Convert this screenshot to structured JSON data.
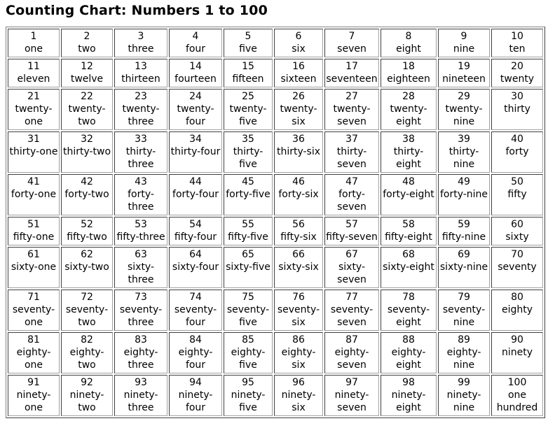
{
  "title": "Counting Chart: Numbers 1 to 100",
  "cells": [
    [
      "1",
      "one"
    ],
    [
      "2",
      "two"
    ],
    [
      "3",
      "three"
    ],
    [
      "4",
      "four"
    ],
    [
      "5",
      "five"
    ],
    [
      "6",
      "six"
    ],
    [
      "7",
      "seven"
    ],
    [
      "8",
      "eight"
    ],
    [
      "9",
      "nine"
    ],
    [
      "10",
      "ten"
    ],
    [
      "11",
      "eleven"
    ],
    [
      "12",
      "twelve"
    ],
    [
      "13",
      "thirteen"
    ],
    [
      "14",
      "fourteen"
    ],
    [
      "15",
      "fifteen"
    ],
    [
      "16",
      "sixteen"
    ],
    [
      "17",
      "seventeen"
    ],
    [
      "18",
      "eighteen"
    ],
    [
      "19",
      "nineteen"
    ],
    [
      "20",
      "twenty"
    ],
    [
      "21",
      "twenty-one"
    ],
    [
      "22",
      "twenty-two"
    ],
    [
      "23",
      "twenty-three"
    ],
    [
      "24",
      "twenty-four"
    ],
    [
      "25",
      "twenty-five"
    ],
    [
      "26",
      "twenty-six"
    ],
    [
      "27",
      "twenty-seven"
    ],
    [
      "28",
      "twenty-eight"
    ],
    [
      "29",
      "twenty-nine"
    ],
    [
      "30",
      "thirty"
    ],
    [
      "31",
      "thirty-one"
    ],
    [
      "32",
      "thirty-two"
    ],
    [
      "33",
      "thirty-three"
    ],
    [
      "34",
      "thirty-four"
    ],
    [
      "35",
      "thirty-five"
    ],
    [
      "36",
      "thirty-six"
    ],
    [
      "37",
      "thirty-seven"
    ],
    [
      "38",
      "thirty-eight"
    ],
    [
      "39",
      "thirty-nine"
    ],
    [
      "40",
      "forty"
    ],
    [
      "41",
      "forty-one"
    ],
    [
      "42",
      "forty-two"
    ],
    [
      "43",
      "forty-three"
    ],
    [
      "44",
      "forty-four"
    ],
    [
      "45",
      "forty-five"
    ],
    [
      "46",
      "forty-six"
    ],
    [
      "47",
      "forty-seven"
    ],
    [
      "48",
      "forty-eight"
    ],
    [
      "49",
      "forty-nine"
    ],
    [
      "50",
      "fifty"
    ],
    [
      "51",
      "fifty-one"
    ],
    [
      "52",
      "fifty-two"
    ],
    [
      "53",
      "fifty-three"
    ],
    [
      "54",
      "fifty-four"
    ],
    [
      "55",
      "fifty-five"
    ],
    [
      "56",
      "fifty-six"
    ],
    [
      "57",
      "fifty-seven"
    ],
    [
      "58",
      "fifty-eight"
    ],
    [
      "59",
      "fifty-nine"
    ],
    [
      "60",
      "sixty"
    ],
    [
      "61",
      "sixty-one"
    ],
    [
      "62",
      "sixty-two"
    ],
    [
      "63",
      "sixty-three"
    ],
    [
      "64",
      "sixty-four"
    ],
    [
      "65",
      "sixty-five"
    ],
    [
      "66",
      "sixty-six"
    ],
    [
      "67",
      "sixty-seven"
    ],
    [
      "68",
      "sixty-eight"
    ],
    [
      "69",
      "sixty-nine"
    ],
    [
      "70",
      "seventy"
    ],
    [
      "71",
      "seventy-one"
    ],
    [
      "72",
      "seventy-two"
    ],
    [
      "73",
      "seventy-three"
    ],
    [
      "74",
      "seventy-four"
    ],
    [
      "75",
      "seventy-five"
    ],
    [
      "76",
      "seventy-six"
    ],
    [
      "77",
      "seventy-seven"
    ],
    [
      "78",
      "seventy-eight"
    ],
    [
      "79",
      "seventy-nine"
    ],
    [
      "80",
      "eighty"
    ],
    [
      "81",
      "eighty-one"
    ],
    [
      "82",
      "eighty-two"
    ],
    [
      "83",
      "eighty-three"
    ],
    [
      "84",
      "eighty-four"
    ],
    [
      "85",
      "eighty-five"
    ],
    [
      "86",
      "eighty-six"
    ],
    [
      "87",
      "eighty-seven"
    ],
    [
      "88",
      "eighty-eight"
    ],
    [
      "89",
      "eighty-nine"
    ],
    [
      "90",
      "ninety"
    ],
    [
      "91",
      "ninety-one"
    ],
    [
      "92",
      "ninety-two"
    ],
    [
      "93",
      "ninety-three"
    ],
    [
      "94",
      "ninety-four"
    ],
    [
      "95",
      "ninety-five"
    ],
    [
      "96",
      "ninety-six"
    ],
    [
      "97",
      "ninety-seven"
    ],
    [
      "98",
      "ninety-eight"
    ],
    [
      "99",
      "ninety-nine"
    ],
    [
      "100",
      "one hundred"
    ]
  ]
}
